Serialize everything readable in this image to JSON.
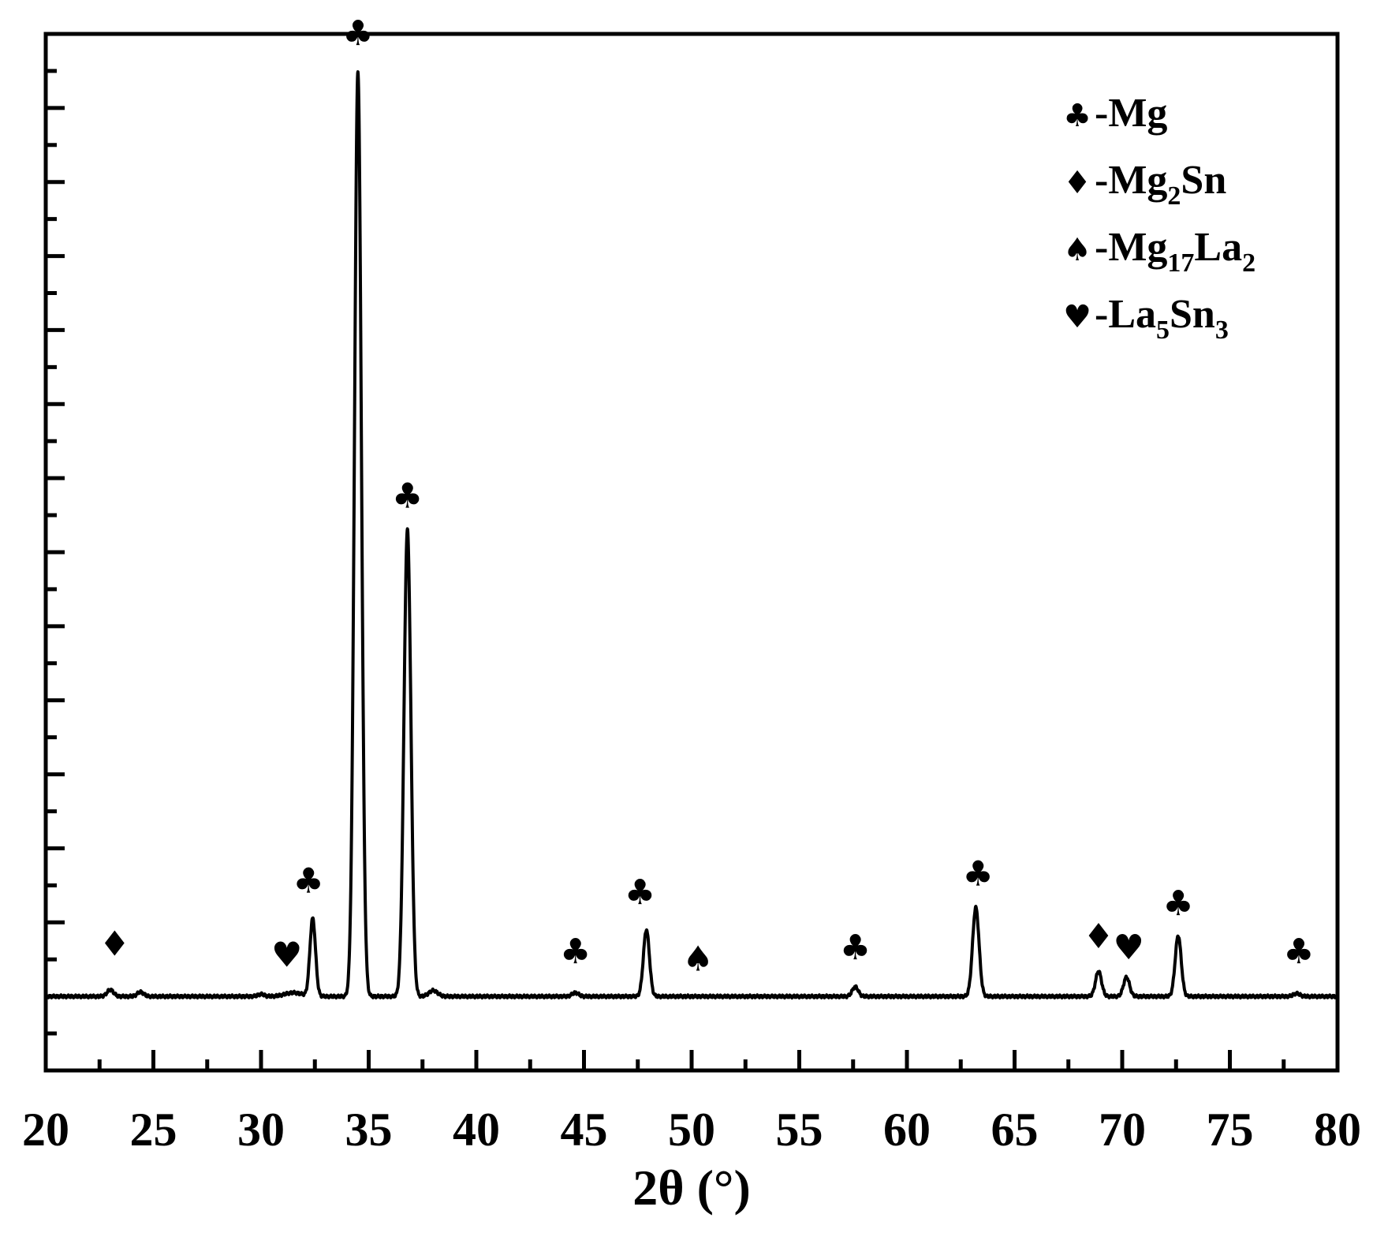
{
  "chart_data": {
    "type": "line",
    "title": "",
    "xlabel": "2θ (°)",
    "ylabel": "",
    "xlim": [
      20,
      80
    ],
    "ylim": [
      -10,
      130
    ],
    "x_ticks": [
      "20",
      "25",
      "30",
      "35",
      "40",
      "45",
      "50",
      "55",
      "60",
      "65",
      "70",
      "75",
      "80"
    ],
    "y_tick_labels_shown": false,
    "baseline": 0,
    "peaks": [
      {
        "x": 23.0,
        "height": 0.9,
        "width": 0.15
      },
      {
        "x": 24.4,
        "height": 0.6,
        "width": 0.15
      },
      {
        "x": 30.0,
        "height": 0.3,
        "width": 0.15
      },
      {
        "x": 31.5,
        "height": 0.5,
        "width": 0.4
      },
      {
        "x": 32.4,
        "height": 10.5,
        "width": 0.13
      },
      {
        "x": 34.5,
        "height": 125.0,
        "width": 0.16
      },
      {
        "x": 36.8,
        "height": 63.0,
        "width": 0.16
      },
      {
        "x": 38.0,
        "height": 0.8,
        "width": 0.2
      },
      {
        "x": 44.6,
        "height": 0.5,
        "width": 0.15
      },
      {
        "x": 47.9,
        "height": 9.0,
        "width": 0.14
      },
      {
        "x": 57.6,
        "height": 1.3,
        "width": 0.14
      },
      {
        "x": 63.2,
        "height": 12.0,
        "width": 0.15
      },
      {
        "x": 68.9,
        "height": 3.4,
        "width": 0.14
      },
      {
        "x": 70.2,
        "height": 2.6,
        "width": 0.14
      },
      {
        "x": 72.6,
        "height": 8.2,
        "width": 0.14
      },
      {
        "x": 78.1,
        "height": 0.4,
        "width": 0.15
      }
    ],
    "annotations": [
      {
        "x": 23.2,
        "y": 5.5,
        "symbol": "♦",
        "phase": "Mg2Sn"
      },
      {
        "x": 31.2,
        "y": 4.0,
        "symbol": "♥",
        "phase": "La5Sn3"
      },
      {
        "x": 32.2,
        "y": 14.0,
        "symbol": "♣",
        "phase": "Mg"
      },
      {
        "x": 34.5,
        "y": 128.5,
        "symbol": "♣",
        "phase": "Mg"
      },
      {
        "x": 36.8,
        "y": 66.0,
        "symbol": "♣",
        "phase": "Mg"
      },
      {
        "x": 44.6,
        "y": 4.5,
        "symbol": "♣",
        "phase": "Mg"
      },
      {
        "x": 47.6,
        "y": 12.5,
        "symbol": "♣",
        "phase": "Mg"
      },
      {
        "x": 50.3,
        "y": 3.5,
        "symbol": "♠",
        "phase": "Mg17La2"
      },
      {
        "x": 57.6,
        "y": 5.0,
        "symbol": "♣",
        "phase": "Mg"
      },
      {
        "x": 63.3,
        "y": 15.0,
        "symbol": "♣",
        "phase": "Mg"
      },
      {
        "x": 68.9,
        "y": 6.5,
        "symbol": "♦",
        "phase": "Mg2Sn"
      },
      {
        "x": 70.3,
        "y": 5.0,
        "symbol": "♥",
        "phase": "La5Sn3"
      },
      {
        "x": 72.6,
        "y": 11.0,
        "symbol": "♣",
        "phase": "Mg"
      },
      {
        "x": 78.2,
        "y": 4.5,
        "symbol": "♣",
        "phase": "Mg"
      }
    ],
    "legend": {
      "position": "top-right",
      "entries": [
        {
          "symbol": "♣",
          "prefix": "-",
          "parts": [
            {
              "t": "Mg",
              "sub": false
            }
          ]
        },
        {
          "symbol": "♦",
          "prefix": "-",
          "parts": [
            {
              "t": "Mg",
              "sub": false
            },
            {
              "t": "2",
              "sub": true
            },
            {
              "t": "Sn",
              "sub": false
            }
          ]
        },
        {
          "symbol": "♠",
          "prefix": "-",
          "parts": [
            {
              "t": "Mg",
              "sub": false
            },
            {
              "t": "17",
              "sub": true
            },
            {
              "t": "La",
              "sub": false
            },
            {
              "t": "2",
              "sub": true
            }
          ]
        },
        {
          "symbol": "♥",
          "prefix": "-",
          "parts": [
            {
              "t": "La",
              "sub": false
            },
            {
              "t": "5",
              "sub": true
            },
            {
              "t": "Sn",
              "sub": false
            },
            {
              "t": "3",
              "sub": true
            }
          ]
        }
      ]
    },
    "grid": false
  },
  "colors": {
    "line": "#000000",
    "background": "#ffffff"
  }
}
